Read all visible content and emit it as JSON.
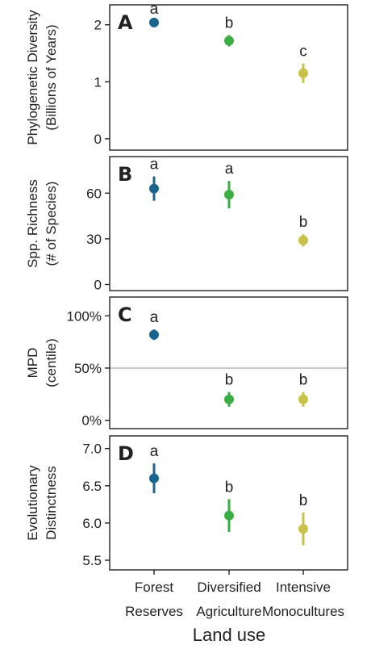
{
  "chart_data": [
    {
      "type": "scatter",
      "panel_letter": "A",
      "ylabel_lines": [
        "Phylogenetic Diversity",
        "(Billions of Years)"
      ],
      "yticks": [
        "0",
        "1",
        "2"
      ],
      "ylim": [
        -0.2,
        2.35
      ],
      "tick_values": [
        0,
        1,
        2
      ],
      "points": [
        {
          "category": "Forest Reserves",
          "mean": 2.04,
          "lo": 2.01,
          "hi": 2.07,
          "sig": "a"
        },
        {
          "category": "Diversified Agriculture",
          "mean": 1.72,
          "lo": 1.62,
          "hi": 1.82,
          "sig": "b"
        },
        {
          "category": "Intensive Monocultures",
          "mean": 1.15,
          "lo": 0.98,
          "hi": 1.32,
          "sig": "c"
        }
      ]
    },
    {
      "type": "scatter",
      "panel_letter": "B",
      "ylabel_lines": [
        "Spp. Richness",
        "(# of Species)"
      ],
      "yticks": [
        "0",
        "30",
        "60"
      ],
      "ylim": [
        -4,
        84
      ],
      "tick_values": [
        0,
        30,
        60
      ],
      "points": [
        {
          "category": "Forest Reserves",
          "mean": 63,
          "lo": 55,
          "hi": 71,
          "sig": "a"
        },
        {
          "category": "Diversified Agriculture",
          "mean": 59,
          "lo": 50,
          "hi": 68,
          "sig": "a"
        },
        {
          "category": "Intensive Monocultures",
          "mean": 29,
          "lo": 25,
          "hi": 33,
          "sig": "b"
        }
      ]
    },
    {
      "type": "scatter",
      "panel_letter": "C",
      "ylabel_lines": [
        "MPD",
        "(centile)"
      ],
      "yticks": [
        "0%",
        "50%",
        "100%"
      ],
      "ylim": [
        -8,
        118
      ],
      "tick_values": [
        0,
        50,
        100
      ],
      "hline": 50,
      "points": [
        {
          "category": "Forest Reserves",
          "mean": 82,
          "lo": 77,
          "hi": 87,
          "sig": "a"
        },
        {
          "category": "Diversified Agriculture",
          "mean": 20,
          "lo": 13,
          "hi": 27,
          "sig": "b"
        },
        {
          "category": "Intensive Monocultures",
          "mean": 20,
          "lo": 13,
          "hi": 27,
          "sig": "b"
        }
      ]
    },
    {
      "type": "scatter",
      "panel_letter": "D",
      "ylabel_lines": [
        "Evolutionary",
        "Distinctness"
      ],
      "yticks": [
        "5.5",
        "6.0",
        "6.5",
        "7.0"
      ],
      "ylim": [
        5.37,
        7.17
      ],
      "tick_values": [
        5.5,
        6.0,
        6.5,
        7.0
      ],
      "points": [
        {
          "category": "Forest Reserves",
          "mean": 6.6,
          "lo": 6.4,
          "hi": 6.8,
          "sig": "a"
        },
        {
          "category": "Diversified Agriculture",
          "mean": 6.1,
          "lo": 5.88,
          "hi": 6.32,
          "sig": "b"
        },
        {
          "category": "Intensive Monocultures",
          "mean": 5.92,
          "lo": 5.7,
          "hi": 6.14,
          "sig": "b"
        }
      ]
    }
  ],
  "categories": [
    {
      "line1": "Forest",
      "line2": "Reserves"
    },
    {
      "line1": "Diversified",
      "line2": "Agriculture"
    },
    {
      "line1": "Intensive",
      "line2": "Monocultures"
    }
  ],
  "xlabel": "Land use",
  "colors": [
    "#1a6590",
    "#3aae43",
    "#c9c24a"
  ],
  "hline_color": "#c8c8c8"
}
